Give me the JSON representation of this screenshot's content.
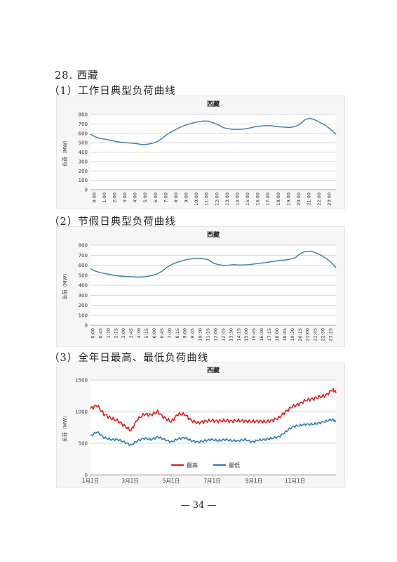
{
  "section": {
    "title": "28. 西藏",
    "sub1": "（1）工作日典型负荷曲线",
    "sub2": "（2）节假日典型负荷曲线",
    "sub3": "（3）全年日最高、最低负荷曲线"
  },
  "page_number": "— 34 —",
  "chart_data": [
    {
      "id": "weekday",
      "type": "line",
      "title": "西藏",
      "ylabel": "负荷（MW）",
      "ylim": [
        0,
        800
      ],
      "yticks": [
        0,
        100,
        200,
        300,
        400,
        500,
        600,
        700,
        800
      ],
      "grid": true,
      "legend": "none",
      "colors": {
        "line": "#4a7fa0",
        "grid": "#c8c8c8"
      },
      "x_tick_labels": [
        "0:00",
        "1:00",
        "2:00",
        "3:00",
        "4:00",
        "5:00",
        "6:00",
        "7:00",
        "8:00",
        "9:00",
        "10:00",
        "11:00",
        "12:00",
        "13:00",
        "14:00",
        "15:00",
        "16:00",
        "17:00",
        "18:00",
        "19:00",
        "20:00",
        "21:00",
        "22:00",
        "23:00"
      ],
      "x": [
        0,
        0.5,
        1,
        1.5,
        2,
        2.5,
        3,
        3.5,
        4,
        4.5,
        5,
        5.5,
        6,
        6.5,
        7,
        7.5,
        8,
        8.5,
        9,
        9.5,
        10,
        10.5,
        11,
        11.5,
        12,
        12.5,
        13,
        13.5,
        14,
        14.5,
        15,
        15.5,
        16,
        16.5,
        17,
        17.5,
        18,
        18.5,
        19,
        19.5,
        20,
        20.5,
        21,
        21.5,
        22,
        22.5,
        23,
        23.5,
        24
      ],
      "values": [
        590,
        560,
        545,
        535,
        525,
        512,
        505,
        500,
        495,
        490,
        480,
        482,
        492,
        510,
        545,
        590,
        620,
        650,
        675,
        695,
        710,
        722,
        730,
        730,
        712,
        690,
        660,
        648,
        642,
        642,
        645,
        655,
        668,
        675,
        680,
        682,
        675,
        668,
        665,
        663,
        672,
        700,
        748,
        760,
        740,
        712,
        682,
        640,
        590
      ]
    },
    {
      "id": "holiday",
      "type": "line",
      "title": "西藏",
      "ylabel": "负荷（MW）",
      "ylim": [
        0,
        800
      ],
      "yticks": [
        0,
        100,
        200,
        300,
        400,
        500,
        600,
        700,
        800
      ],
      "grid": true,
      "legend": "none",
      "colors": {
        "line": "#4a7fa0",
        "grid": "#c8c8c8"
      },
      "x_tick_labels": [
        "0:00",
        "0:45",
        "1:30",
        "2:15",
        "3:00",
        "3:45",
        "4:30",
        "5:15",
        "6:00",
        "6:45",
        "7:30",
        "8:15",
        "9:00",
        "9:45",
        "10:30",
        "11:15",
        "12:00",
        "12:45",
        "13:30",
        "14:15",
        "15:00",
        "15:45",
        "16:30",
        "17:15",
        "18:00",
        "18:45",
        "19:30",
        "20:15",
        "21:00",
        "21:45",
        "22:30",
        "23:15"
      ],
      "x": [
        0,
        0.5,
        1,
        1.5,
        2,
        2.5,
        3,
        3.5,
        4,
        4.5,
        5,
        5.5,
        6,
        6.5,
        7,
        7.5,
        8,
        8.5,
        9,
        9.5,
        10,
        10.5,
        11,
        11.5,
        12,
        12.5,
        13,
        13.5,
        14,
        14.5,
        15,
        15.5,
        16,
        16.5,
        17,
        17.5,
        18,
        18.5,
        19,
        19.5,
        20,
        20.5,
        21,
        21.5,
        22,
        22.5,
        23,
        23.5,
        24
      ],
      "values": [
        565,
        540,
        525,
        515,
        505,
        495,
        490,
        485,
        485,
        482,
        482,
        487,
        497,
        512,
        540,
        580,
        610,
        630,
        645,
        660,
        665,
        668,
        665,
        655,
        622,
        605,
        598,
        600,
        605,
        602,
        603,
        605,
        612,
        618,
        625,
        632,
        640,
        648,
        652,
        660,
        672,
        715,
        738,
        740,
        725,
        702,
        670,
        632,
        575
      ]
    },
    {
      "id": "annual",
      "type": "line",
      "title": "西藏",
      "ylabel": "负荷（MW）",
      "ylim": [
        0,
        1500
      ],
      "yticks": [
        0,
        500,
        1000,
        1500
      ],
      "grid": true,
      "legend": "bottom",
      "colors": {
        "grid": "#c8c8c8"
      },
      "x_tick_labels": [
        "1月1日",
        "3月1日",
        "5月1日",
        "7月1日",
        "9月1日",
        "11月1日"
      ],
      "x_tick_days": [
        0,
        59,
        120,
        181,
        243,
        304
      ],
      "x": [
        0,
        10,
        20,
        30,
        40,
        50,
        60,
        70,
        80,
        90,
        100,
        110,
        120,
        130,
        140,
        150,
        160,
        170,
        180,
        190,
        200,
        210,
        220,
        230,
        240,
        250,
        260,
        270,
        280,
        290,
        300,
        310,
        320,
        330,
        340,
        350,
        360,
        365
      ],
      "series": [
        {
          "name": "最高",
          "color": "#e01e1e",
          "values": [
            1050,
            1100,
            960,
            900,
            860,
            780,
            700,
            880,
            960,
            950,
            1000,
            900,
            840,
            960,
            960,
            860,
            820,
            850,
            860,
            850,
            860,
            850,
            860,
            850,
            845,
            850,
            840,
            860,
            900,
            1000,
            1080,
            1120,
            1180,
            1200,
            1230,
            1260,
            1350,
            1300
          ]
        },
        {
          "name": "最低",
          "color": "#2a7db8",
          "values": [
            620,
            680,
            590,
            560,
            560,
            520,
            470,
            540,
            580,
            560,
            600,
            560,
            520,
            570,
            590,
            540,
            520,
            540,
            560,
            540,
            560,
            540,
            540,
            560,
            520,
            550,
            560,
            580,
            600,
            680,
            760,
            780,
            800,
            800,
            820,
            850,
            880,
            840
          ]
        }
      ]
    }
  ]
}
